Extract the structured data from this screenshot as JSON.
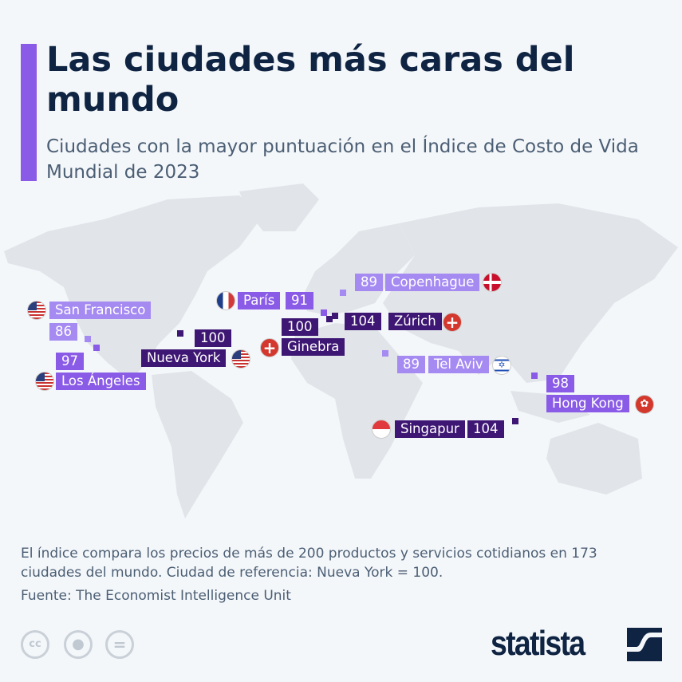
{
  "header": {
    "title": "Las ciudades más caras del mundo",
    "subtitle": "Ciudades con la mayor puntuación en el Índice de Costo de Vida Mundial de 2023"
  },
  "colors": {
    "accent": "#8a5be6",
    "light": "#a58af2",
    "dark": "#3e1673",
    "title": "#0f2442",
    "land": "#e1e4e8",
    "background": "#f4f7fa"
  },
  "cities": [
    {
      "name": "San Francisco",
      "value": "86",
      "flag": "us-flag-icon"
    },
    {
      "name": "Los Ángeles",
      "value": "97",
      "flag": "us-flag-icon"
    },
    {
      "name": "Nueva York",
      "value": "100",
      "flag": "us-flag-icon"
    },
    {
      "name": "París",
      "value": "91",
      "flag": "france-flag-icon"
    },
    {
      "name": "Ginebra",
      "value": "100",
      "flag": "switzerland-flag-icon"
    },
    {
      "name": "Zúrich",
      "value": "104",
      "flag": "switzerland-flag-icon"
    },
    {
      "name": "Copenhague",
      "value": "89",
      "flag": "denmark-flag-icon"
    },
    {
      "name": "Tel Aviv",
      "value": "89",
      "flag": "israel-flag-icon"
    },
    {
      "name": "Hong Kong",
      "value": "98",
      "flag": "hong-kong-flag-icon"
    },
    {
      "name": "Singapur",
      "value": "104",
      "flag": "singapore-flag-icon"
    }
  ],
  "footer": {
    "note": "El índice compara los precios de más de 200 productos y servicios cotidianos en 173 ciudades del mundo. Ciudad de referencia: Nueva York = 100.",
    "source": "Fuente: The Economist Intelligence Unit",
    "license_icons": [
      "cc-icon",
      "attribution-icon",
      "no-derivatives-icon"
    ],
    "cc_text": "cc",
    "logo": "statista"
  }
}
